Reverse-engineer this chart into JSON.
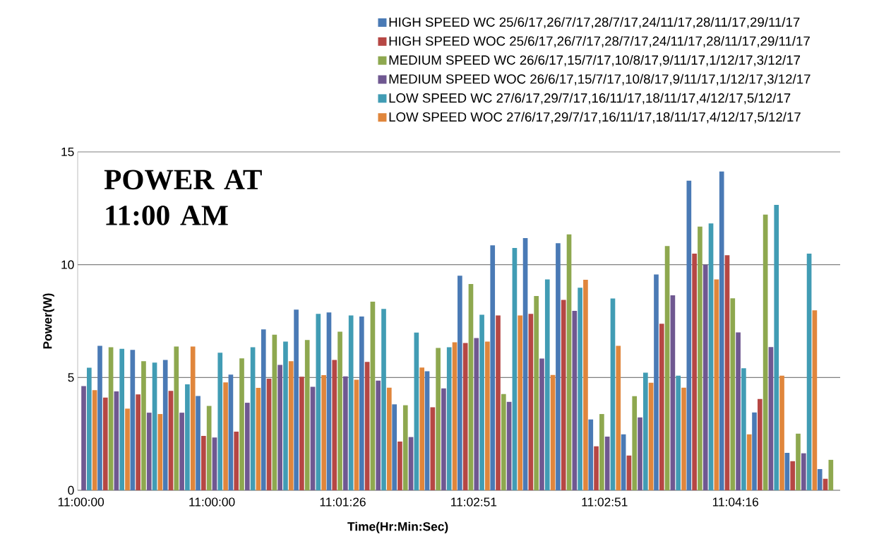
{
  "chart_data": {
    "type": "bar",
    "title": "POWER AT 11:00 AM",
    "xlabel": "Time(Hr:Min:Sec)",
    "ylabel": "Power(W)",
    "categories": [
      "11:00:00",
      null,
      null,
      null,
      "11:00:00",
      null,
      null,
      null,
      "11:01:26",
      null,
      null,
      null,
      "11:02:51",
      null,
      null,
      null,
      "11:02:51",
      null,
      null,
      null,
      "11:04:16",
      null,
      null,
      null
    ],
    "series": [
      {
        "name": "HIGH SPEED WC 25/6/17,26/7/17,28/7/17,24/11/17,28/11/17,29/11/17",
        "color": "#4a7ab5",
        "values": [
          null,
          6.4,
          6.22,
          5.78,
          4.18,
          5.13,
          7.13,
          8.01,
          7.88,
          7.7,
          3.81,
          5.28,
          9.51,
          10.86,
          11.18,
          10.95,
          3.14,
          2.48,
          9.57,
          13.72,
          14.13,
          3.45,
          1.66,
          0.94
        ]
      },
      {
        "name": "HIGH SPEED WOC  25/6/17,26/7/17,28/7/17,24/11/17,28/11/17,29/11/17",
        "color": "#b64744",
        "values": [
          null,
          4.11,
          4.25,
          4.41,
          2.41,
          2.6,
          4.95,
          5.03,
          5.78,
          5.69,
          2.16,
          3.68,
          6.53,
          7.75,
          7.82,
          8.44,
          1.95,
          1.54,
          7.38,
          10.49,
          10.42,
          4.05,
          1.29,
          0.51
        ]
      },
      {
        "name": "MEDIUM SPEED WC 26/6/17,15/7/17,10/8/17,9/11/17,1/12/17,3/12/17",
        "color": "#8ea84f",
        "values": [
          null,
          6.34,
          5.72,
          6.37,
          3.74,
          5.85,
          6.9,
          6.66,
          7.03,
          8.36,
          3.77,
          6.31,
          9.14,
          4.27,
          8.61,
          11.34,
          3.38,
          4.17,
          10.83,
          11.69,
          8.51,
          12.22,
          2.51,
          1.35
        ]
      },
      {
        "name": "MEDIUM SPEED WOC  26/6/17,15/7/17,10/8/17,9/11/17,1/12/17,3/12/17",
        "color": "#6f5891",
        "values": [
          4.62,
          4.38,
          3.44,
          3.44,
          2.34,
          3.88,
          5.56,
          4.59,
          5.05,
          4.86,
          2.36,
          4.52,
          6.75,
          3.92,
          5.84,
          7.95,
          2.38,
          3.23,
          8.64,
          10.0,
          7.0,
          6.35,
          1.64,
          null
        ]
      },
      {
        "name": "LOW SPEED WC 27/6/17,29/7/17,16/11/17,18/11/17,4/12/17,5/12/17",
        "color": "#419cb4",
        "values": [
          5.43,
          6.27,
          5.66,
          4.7,
          6.1,
          6.34,
          6.59,
          7.82,
          7.75,
          8.04,
          6.99,
          6.34,
          7.78,
          10.74,
          9.35,
          8.98,
          8.5,
          5.21,
          5.08,
          11.83,
          5.41,
          12.65,
          10.49,
          null
        ]
      },
      {
        "name": "LOW SPEED WOC 27/6/17,29/7/17,16/11/17,18/11/17,4/12/17,5/12/17",
        "color": "#e0863c",
        "values": [
          4.44,
          3.62,
          3.38,
          6.37,
          4.78,
          4.54,
          5.72,
          5.1,
          4.9,
          4.55,
          5.44,
          6.56,
          6.59,
          7.75,
          5.11,
          9.33,
          6.4,
          4.77,
          4.55,
          9.35,
          2.48,
          5.08,
          7.98,
          null
        ]
      }
    ],
    "ylim": [
      0,
      15
    ],
    "yticks": [
      0,
      5,
      10,
      15
    ],
    "grid": "y",
    "legend": "top right"
  }
}
